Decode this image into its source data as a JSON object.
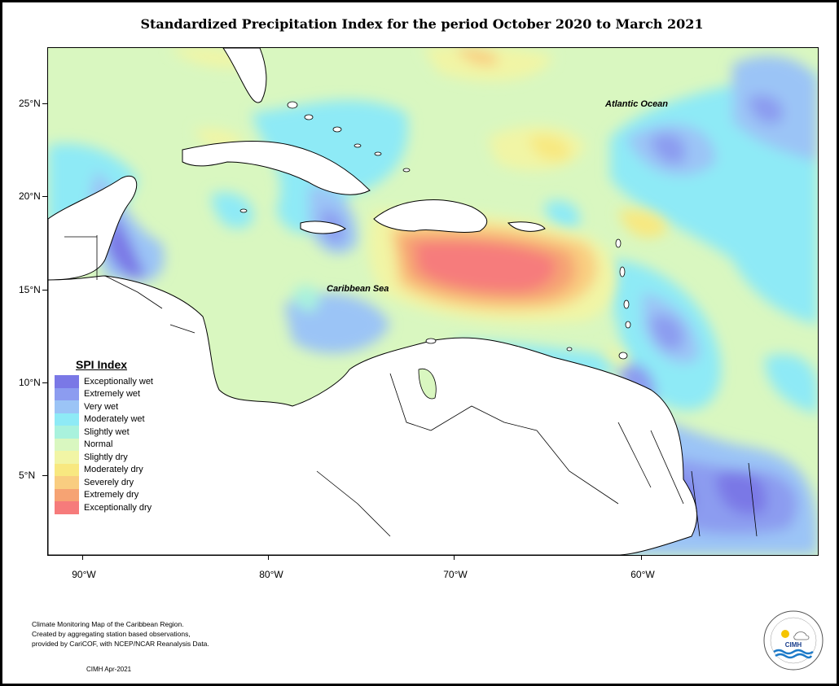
{
  "title": "Standardized Precipitation Index for the period October 2020 to March 2021",
  "labels": {
    "atlantic": "Atlantic Ocean",
    "caribbean": "Caribbean Sea"
  },
  "lat_ticks": [
    "25°N",
    "20°N",
    "15°N",
    "10°N",
    "5°N"
  ],
  "lon_ticks": [
    "90°W",
    "80°W",
    "70°W",
    "60°W"
  ],
  "legend": {
    "title": "SPI Index",
    "items": [
      {
        "label": "Exceptionally wet",
        "color": "#7a78e6"
      },
      {
        "label": "Extremely wet",
        "color": "#8c9cf0"
      },
      {
        "label": "Very wet",
        "color": "#9bc4f6"
      },
      {
        "label": "Moderately wet",
        "color": "#8eeaf6"
      },
      {
        "label": "Slightly wet",
        "color": "#a9f2dd"
      },
      {
        "label": "Normal",
        "color": "#d9f7c0"
      },
      {
        "label": "Slightly dry",
        "color": "#f1f5a5"
      },
      {
        "label": "Moderately dry",
        "color": "#f8e880"
      },
      {
        "label": "Severely dry",
        "color": "#f9cd80"
      },
      {
        "label": "Extremely dry",
        "color": "#f6a373"
      },
      {
        "label": "Exceptionally dry",
        "color": "#f67b7b"
      }
    ]
  },
  "footnote": {
    "line1": "Climate Monitoring Map of the Caribbean Region.",
    "line2": "Created by aggregating station based observations,",
    "line3": "provided by CariCOF, with NCEP/NCAR Reanalysis Data.",
    "credit": "CIMH Apr-2021"
  },
  "logo": {
    "text": "CIMH"
  }
}
